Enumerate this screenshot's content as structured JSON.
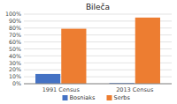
{
  "chart_data": {
    "type": "bar",
    "title": "Bileča",
    "categories": [
      "1991 Census",
      "2013 Census"
    ],
    "series": [
      {
        "name": "Bosniaks",
        "color": "#4472c4",
        "values": [
          0.14,
          0.01
        ]
      },
      {
        "name": "Serbs",
        "color": "#ed7d31",
        "values": [
          0.79,
          0.95
        ]
      }
    ],
    "ylim": [
      0,
      1.0
    ],
    "yticks": [
      {
        "value": 0.0,
        "label": "0%"
      },
      {
        "value": 0.1,
        "label": "10%"
      },
      {
        "value": 0.2,
        "label": "20%"
      },
      {
        "value": 0.3,
        "label": "30%"
      },
      {
        "value": 0.4,
        "label": "40%"
      },
      {
        "value": 0.5,
        "label": "50%"
      },
      {
        "value": 0.6,
        "label": "60%"
      },
      {
        "value": 0.7,
        "label": "70%"
      },
      {
        "value": 0.8,
        "label": "80%"
      },
      {
        "value": 0.9,
        "label": "90%"
      },
      {
        "value": 1.0,
        "label": "100%"
      }
    ],
    "grid": true,
    "legend": "bottom"
  }
}
